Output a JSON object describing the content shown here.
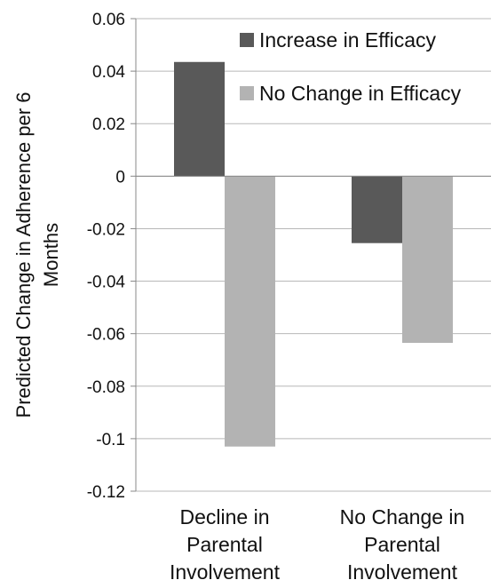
{
  "chart_data": {
    "type": "bar",
    "title": "",
    "xlabel": "",
    "ylabel": "Predicted Change in Adherence per 6 Months",
    "ylabel_lines": [
      "Predicted Change in Adherence per 6",
      "Months"
    ],
    "categories": [
      "Decline in Parental Involvement",
      "No Change in Parental Involvement"
    ],
    "category_lines": [
      [
        "Decline in",
        "Parental",
        "Involvement"
      ],
      [
        "No Change in",
        "Parental",
        "Involvement"
      ]
    ],
    "series": [
      {
        "name": "Increase in Efficacy",
        "color": "#595959",
        "values": [
          0.0435,
          -0.0255
        ]
      },
      {
        "name": "No Change in Efficacy",
        "color": "#b3b3b3",
        "values": [
          -0.103,
          -0.0635
        ]
      }
    ],
    "ylim": [
      -0.12,
      0.06
    ],
    "yticks": [
      0.06,
      0.04,
      0.02,
      0,
      -0.02,
      -0.04,
      -0.06,
      -0.08,
      -0.1,
      -0.12
    ],
    "ytick_labels": [
      "0.06",
      "0.04",
      "0.02",
      "0",
      "-0.02",
      "-0.04",
      "-0.06",
      "-0.08",
      "-0.1",
      "-0.12"
    ],
    "grid": true,
    "legend_position": "top-right"
  }
}
